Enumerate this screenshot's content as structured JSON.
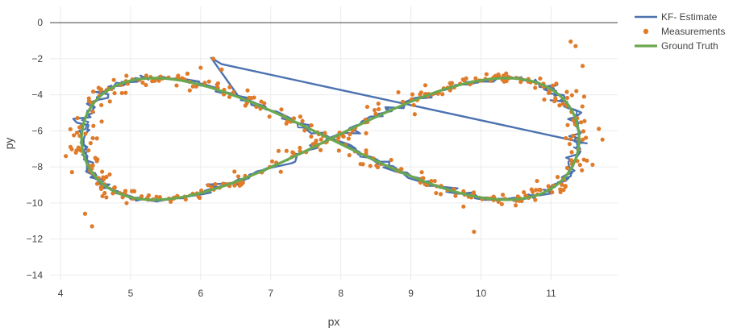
{
  "chart_data": {
    "type": "scatter",
    "title": "",
    "xlabel": "px",
    "ylabel": "py",
    "xlim": [
      3.85,
      11.95
    ],
    "ylim": [
      -14.3,
      0.9
    ],
    "x_ticks": [
      4,
      5,
      6,
      7,
      8,
      9,
      10,
      11
    ],
    "y_ticks": [
      0,
      -2,
      -4,
      -6,
      -8,
      -10,
      -12,
      -14
    ],
    "x_tick_labels": [
      "4",
      "5",
      "6",
      "7",
      "8",
      "9",
      "10",
      "11"
    ],
    "y_tick_labels": [
      "0",
      "−2",
      "−4",
      "−6",
      "−8",
      "−10",
      "−12",
      "−14"
    ],
    "grid": true,
    "legend_position": "top-right",
    "path_model": {
      "center_x": 7.85,
      "center_y": -6.45,
      "amplitude_x": 3.55,
      "amplitude_y": 6.75,
      "t_start": 1.6,
      "t_end": 7.9,
      "samples": 260
    },
    "series": [
      {
        "name": "KF- Estimate",
        "kind": "line",
        "color": "#4c72b0",
        "width": 2.4,
        "noise_amplitude": 0.07,
        "start_point": [
          6.3,
          -2.3
        ],
        "start_turn": [
          6.15,
          -1.95
        ],
        "start_bulge": [
          6.55,
          -4.15
        ],
        "left_excursion": [
          4.2,
          -10.9
        ],
        "right_excursion": [
          9.95,
          -11.5
        ]
      },
      {
        "name": "Measurements",
        "kind": "markers",
        "color": "#e07b2a",
        "radius": 2.6,
        "count": 420,
        "noise_amplitude": 0.14,
        "extra_points": [
          [
            6.18,
            -2.0
          ],
          [
            6.3,
            -2.6
          ],
          [
            11.45,
            -2.4
          ],
          [
            11.35,
            -1.3
          ],
          [
            4.45,
            -11.3
          ],
          [
            9.9,
            -11.6
          ],
          [
            4.35,
            -10.6
          ],
          [
            6.0,
            -2.5
          ],
          [
            11.28,
            -1.05
          ],
          [
            9.75,
            -10.2
          ]
        ]
      },
      {
        "name": "Ground Truth",
        "kind": "line",
        "color": "#6aa84f",
        "width": 3.2,
        "noise_amplitude": 0.0
      }
    ],
    "reference_line": {
      "y": 0,
      "color": "#444444"
    }
  }
}
